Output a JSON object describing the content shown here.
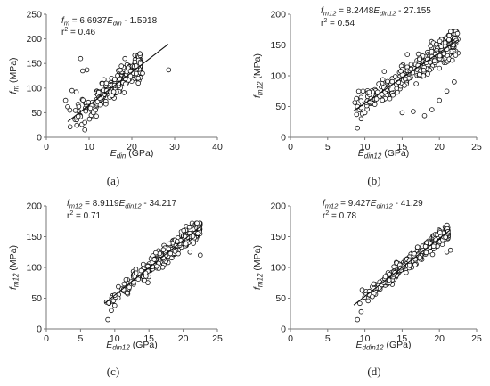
{
  "chart_data": [
    {
      "type": "scatter",
      "panel_label": "(a)",
      "xlim": [
        0,
        40
      ],
      "xticks": [
        0,
        10,
        20,
        30,
        40
      ],
      "ylim": [
        0,
        250
      ],
      "yticks": [
        0,
        50,
        100,
        150,
        200,
        250
      ],
      "xlabel": {
        "base": "E",
        "sub": "din",
        "unit": " (GPa)"
      },
      "ylabel": {
        "base": "f",
        "sub": "m",
        "unit": " (MPa)"
      },
      "equation": {
        "lhs_base": "f",
        "lhs_sub": "m",
        "mid": " = 6.6937",
        "var_base": "E",
        "var_sub": "din",
        "tail": " - 1.5918"
      },
      "r2": {
        "label": "r",
        "sup": "2",
        "value": " = 0.46"
      },
      "trendline": {
        "slope": 6.6937,
        "intercept": -1.5918,
        "x_range": [
          5,
          28.5
        ]
      },
      "gen": {
        "n": 300,
        "xmin": 5,
        "xmax": 22,
        "noise": 26,
        "ymin": 15,
        "ymax": 170,
        "seed": 11
      },
      "outliers": [
        [
          28.6,
          137
        ],
        [
          8,
          160
        ],
        [
          8.5,
          135
        ],
        [
          9.5,
          137
        ],
        [
          6,
          95
        ],
        [
          7,
          92
        ],
        [
          4.5,
          75
        ],
        [
          5,
          62
        ],
        [
          5.5,
          55
        ],
        [
          9,
          30
        ],
        [
          9,
          15
        ],
        [
          10.5,
          45
        ],
        [
          11,
          50
        ],
        [
          21,
          145
        ],
        [
          22,
          150
        ],
        [
          21.5,
          120
        ],
        [
          22.5,
          130
        ],
        [
          21.5,
          110
        ]
      ]
    },
    {
      "type": "scatter",
      "panel_label": "(b)",
      "xlim": [
        0,
        25
      ],
      "xticks": [
        0,
        5,
        10,
        15,
        20,
        25
      ],
      "ylim": [
        0,
        200
      ],
      "yticks": [
        0,
        50,
        100,
        150,
        200
      ],
      "xlabel": {
        "base": "E",
        "sub": "din12",
        "unit": " (GPa)"
      },
      "ylabel": {
        "base": "f",
        "sub": "m12",
        "unit": " (MPa)"
      },
      "equation": {
        "lhs_base": "f",
        "lhs_sub": "m12",
        "mid": " = 8.2448",
        "var_base": "E",
        "var_sub": "din12",
        "tail": " - 27.155"
      },
      "r2": {
        "label": "r",
        "sup": "2",
        "value": " = 0.54"
      },
      "trendline": {
        "slope": 8.2448,
        "intercept": -27.155,
        "x_range": [
          8.5,
          22.5
        ]
      },
      "gen": {
        "n": 330,
        "xmin": 8.5,
        "xmax": 22.5,
        "noise": 22,
        "ymin": 15,
        "ymax": 172,
        "seed": 23
      },
      "outliers": [
        [
          9,
          15
        ],
        [
          9.5,
          30
        ],
        [
          15,
          40
        ],
        [
          16.5,
          42
        ],
        [
          18,
          35
        ],
        [
          19,
          45
        ],
        [
          20,
          60
        ],
        [
          21,
          75
        ],
        [
          22,
          90
        ],
        [
          9,
          50
        ],
        [
          10,
          40
        ]
      ]
    },
    {
      "type": "scatter",
      "panel_label": "(c)",
      "xlim": [
        0,
        25
      ],
      "xticks": [
        0,
        5,
        10,
        15,
        20,
        25
      ],
      "ylim": [
        0,
        200
      ],
      "yticks": [
        0,
        50,
        100,
        150,
        200
      ],
      "xlabel": {
        "base": "E",
        "sub": "din12",
        "unit": " (GPa)"
      },
      "ylabel": {
        "base": "f",
        "sub": "m12",
        "unit": " (MPa)"
      },
      "equation": {
        "lhs_base": "f",
        "lhs_sub": "m12",
        "mid": " = 8.9119",
        "var_base": "E",
        "var_sub": "din12",
        "tail": " - 34.217"
      },
      "r2": {
        "label": "r",
        "sup": "2",
        "value": " = 0.71"
      },
      "trendline": {
        "slope": 8.9119,
        "intercept": -34.217,
        "x_range": [
          8.5,
          22.5
        ]
      },
      "gen": {
        "n": 330,
        "xmin": 8.5,
        "xmax": 22.5,
        "noise": 15,
        "ymin": 15,
        "ymax": 172,
        "seed": 37
      },
      "outliers": [
        [
          9,
          15
        ],
        [
          9.5,
          30
        ],
        [
          10,
          55
        ],
        [
          21,
          125
        ],
        [
          22.5,
          120
        ]
      ]
    },
    {
      "type": "scatter",
      "panel_label": "(d)",
      "xlim": [
        0,
        25
      ],
      "xticks": [
        0,
        5,
        10,
        15,
        20,
        25
      ],
      "ylim": [
        0,
        200
      ],
      "yticks": [
        0,
        50,
        100,
        150,
        200
      ],
      "xlabel": {
        "base": "E",
        "sub": "ddin12",
        "unit": " (GPa)"
      },
      "ylabel": {
        "base": "f",
        "sub": "m12",
        "unit": " (MPa)"
      },
      "equation": {
        "lhs_base": "f",
        "lhs_sub": "m12",
        "mid": " = 9.427",
        "var_base": "E",
        "var_sub": "din12",
        "tail": " - 41.29"
      },
      "r2": {
        "label": "r",
        "sup": "2",
        "value": " = 0.78"
      },
      "trendline": {
        "slope": 9.427,
        "intercept": -41.29,
        "x_range": [
          8.5,
          21.5
        ]
      },
      "gen": {
        "n": 330,
        "xmin": 8.5,
        "xmax": 21.2,
        "noise": 12,
        "ymin": 15,
        "ymax": 172,
        "seed": 53
      },
      "outliers": [
        [
          9,
          15
        ],
        [
          9.5,
          28
        ],
        [
          21,
          125
        ],
        [
          21.5,
          128
        ]
      ]
    }
  ]
}
